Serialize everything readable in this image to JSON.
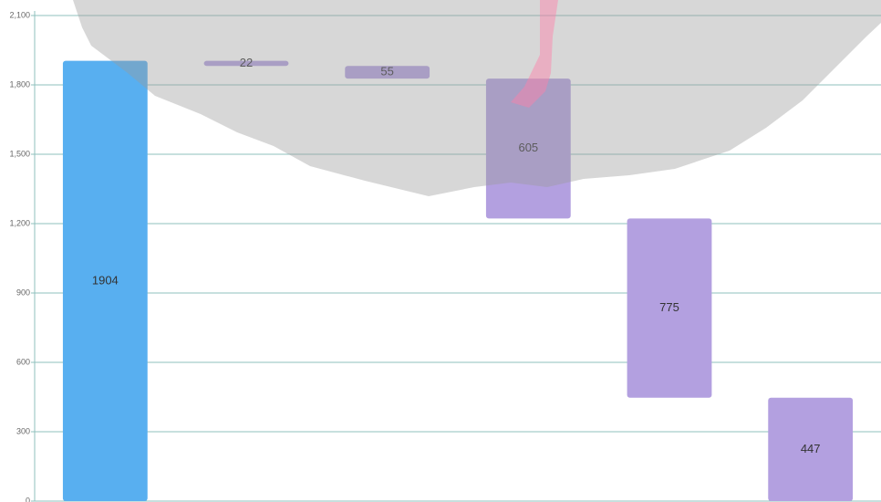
{
  "chart_data": {
    "type": "waterfall",
    "values": [
      1904,
      22,
      55,
      605,
      775,
      447
    ],
    "colors": [
      "#58aff0",
      "#b3a0e0",
      "#b3a0e0",
      "#b3a0e0",
      "#b3a0e0",
      "#b3a0e0"
    ],
    "ylim": [
      0,
      2100
    ],
    "yticks": [
      0,
      300,
      600,
      900,
      {
        "value": 1200,
        "label": "1,200"
      },
      {
        "value": 1500,
        "label": "1,500"
      },
      {
        "value": 1800,
        "label": "1,800"
      },
      {
        "value": 2100,
        "label": "2,100"
      }
    ],
    "grid": true
  }
}
